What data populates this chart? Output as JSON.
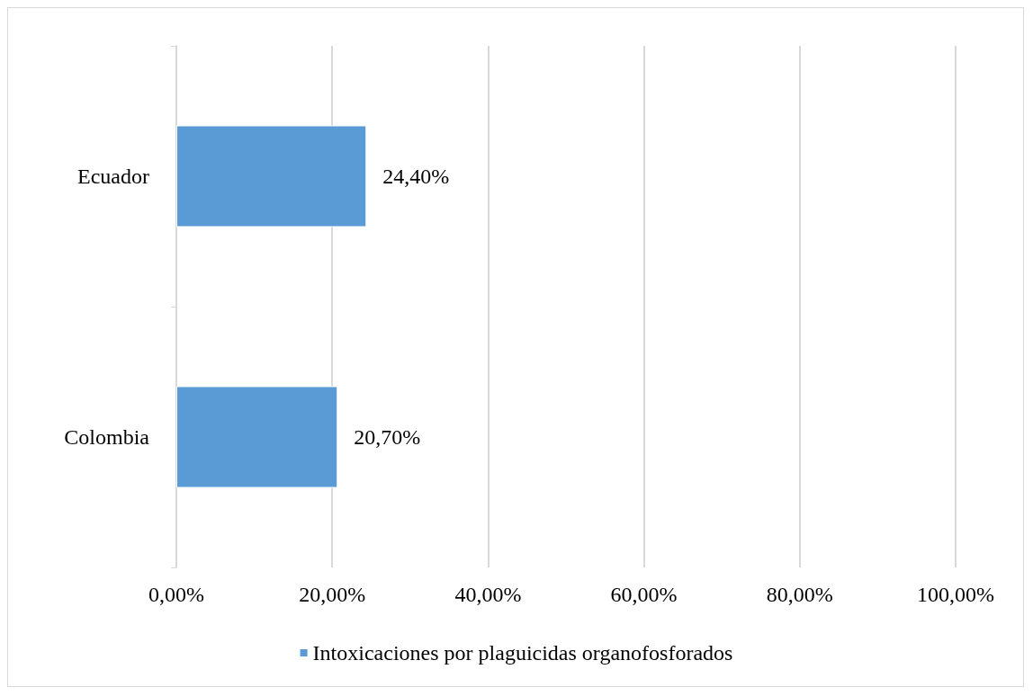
{
  "chart_data": {
    "type": "bar",
    "orientation": "horizontal",
    "categories": [
      "Ecuador",
      "Colombia"
    ],
    "series": [
      {
        "name": "Intoxicaciones por plaguicidas organofosforados",
        "color": "#5b9bd5",
        "values": [
          24.4,
          20.7
        ],
        "value_labels": [
          "24,40%",
          "20,70%"
        ]
      }
    ],
    "xlim": [
      0,
      100
    ],
    "xticks": [
      {
        "value": 0,
        "label": "0,00%"
      },
      {
        "value": 20,
        "label": "20,00%"
      },
      {
        "value": 40,
        "label": "40,00%"
      },
      {
        "value": 60,
        "label": "60,00%"
      },
      {
        "value": 80,
        "label": "80,00%"
      },
      {
        "value": 100,
        "label": "100,00%"
      }
    ],
    "grid": "x",
    "legend": "bottom"
  }
}
